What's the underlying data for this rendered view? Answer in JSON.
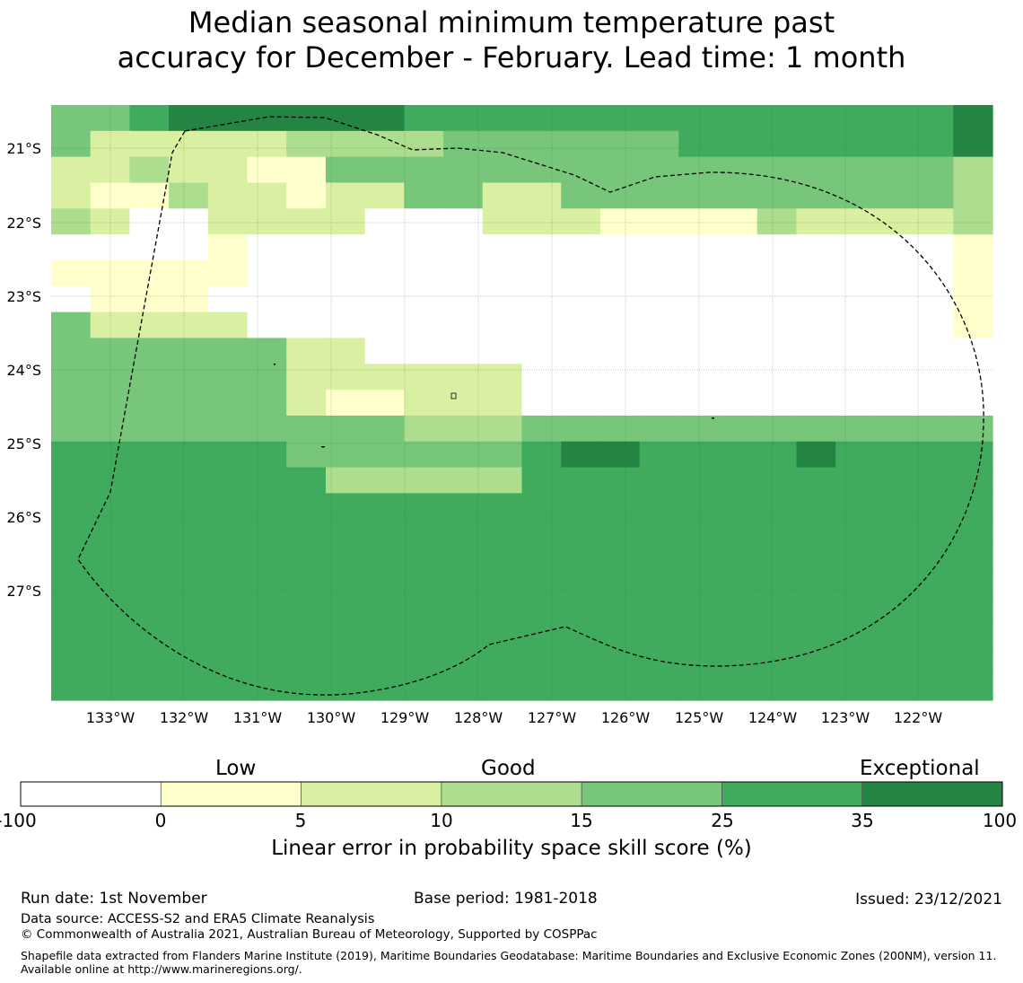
{
  "title": {
    "line1": "Median seasonal minimum temperature past",
    "line2": "accuracy for December - February. Lead time: 1 month"
  },
  "map": {
    "lat_labels": [
      "21°S",
      "22°S",
      "23°S",
      "24°S",
      "25°S",
      "26°S",
      "27°S"
    ],
    "lon_labels": [
      "133°W",
      "132°W",
      "131°W",
      "130°W",
      "129°W",
      "128°W",
      "127°W",
      "126°W",
      "125°W",
      "124°W",
      "123°W",
      "122°W"
    ],
    "colors": [
      "#ffffff",
      "#ffffcc",
      "#d9f0a3",
      "#addd8e",
      "#78c679",
      "#41ab5d",
      "#238443"
    ],
    "grid_rows": [
      "445666666555555555555556",
      "422222333344444455555556",
      "223221144444444444444443",
      "211322122442244444444443",
      "320022220002221111322223",
      "000010000000000000000001",
      "111110000000000000000001",
      "011100000000000000000001",
      "422220000000000000000001",
      "444444220000000000000000",
      "444444222222000000000000",
      "444444211222000000000000",
      "444444444333444444444444",
      "555555444444566555565555",
      "555555533333555555555555",
      "555555555555555555555555",
      "555555555555555555555555",
      "555555555555555555555555",
      "555555555555555555555555",
      "555555555555555555555555",
      "555555555555555555555555",
      "555555555555555555555555",
      "555555555555555555555555"
    ]
  },
  "legend": {
    "low": "Low",
    "good": "Good",
    "exceptional": "Exceptional",
    "ticks": [
      "-100",
      "0",
      "5",
      "10",
      "15",
      "25",
      "35",
      "100"
    ],
    "colors": [
      "#ffffff",
      "#ffffcc",
      "#d9f0a3",
      "#addd8e",
      "#78c679",
      "#41ab5d",
      "#238443"
    ],
    "label": "Linear error in probability space skill score (%)"
  },
  "footer": {
    "run_date": "Run date: 1st November",
    "base_period": "Base period: 1981-2018",
    "issued": "Issued: 23/12/2021",
    "data_source": "Data source: ACCESS-S2 and ERA5 Climate Reanalysis",
    "copyright": "© Commonwealth of Australia 2021, Australian Bureau of Meteorology, Supported by COSPPac",
    "shapefile_credit": "Shapefile data extracted from Flanders Marine Institute (2019), Maritime Boundaries Geodatabase: Maritime Boundaries and Exclusive Economic Zones (200NM), version 11. Available online at http://www.marineregions.org/."
  }
}
